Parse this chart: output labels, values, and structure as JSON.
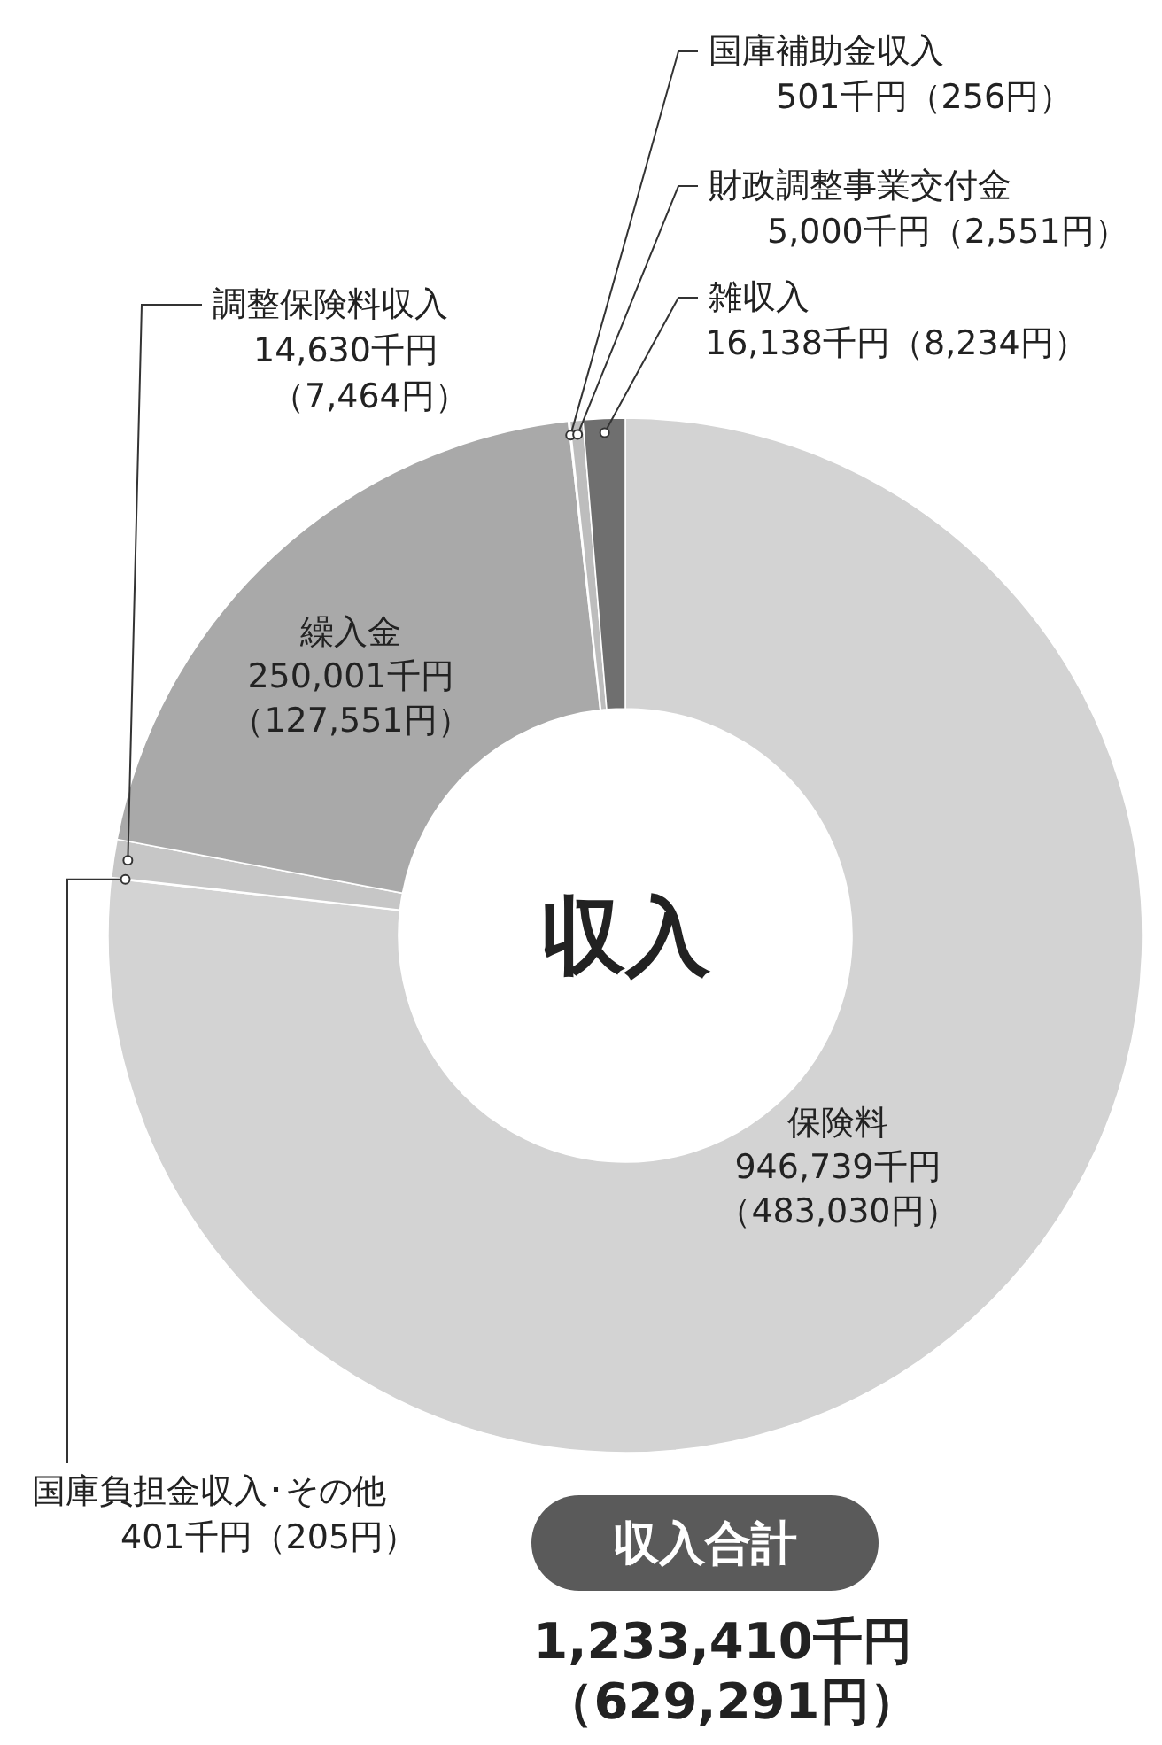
{
  "chart_data": {
    "type": "donut",
    "categories": [
      "保険料",
      "国庫負担金収入･その他",
      "調整保険料収入",
      "繰入金",
      "国庫補助金収入",
      "財政調整事業交付金",
      "雑収入"
    ],
    "values": [
      946739,
      401,
      14630,
      250001,
      501,
      5000,
      16138
    ],
    "colors": [
      "#d3d3d3",
      "#e4e4e4",
      "#c6c6c6",
      "#a9a9a9",
      "#d8d8d8",
      "#bdbdbd",
      "#6f6f6f"
    ],
    "value_labels": [
      "946,739千円（483,030円）",
      "401千円（205円）",
      "14,630千円（7,464円）",
      "250,001千円（127,551円）",
      "501千円（256円）",
      "5,000千円（2,551円）",
      "16,138千円（8,234円）"
    ],
    "annotations": [
      "収入",
      "収入合計",
      "1,233,410千円",
      "（629,291円）"
    ]
  }
}
